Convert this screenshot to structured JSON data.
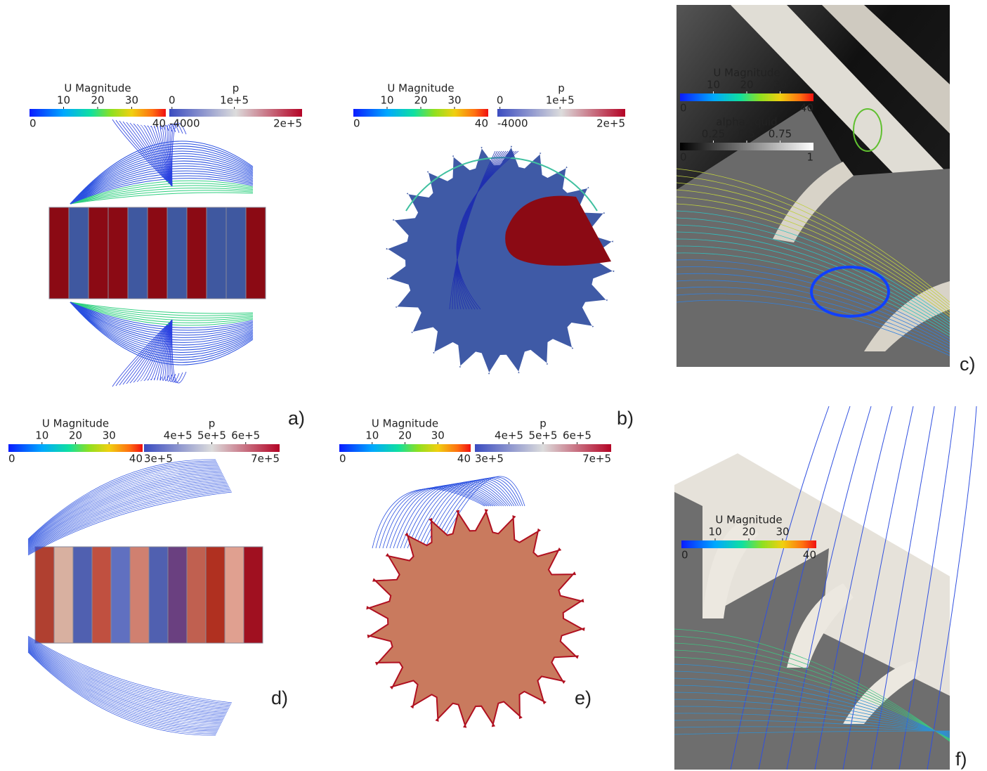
{
  "panels": [
    {
      "label": "a)",
      "colorbars": [
        {
          "title": "U Magnitude",
          "ticks": [
            "10",
            "20",
            "30"
          ],
          "min": "0",
          "max": "40"
        },
        {
          "title": "p",
          "ticks": [
            "0",
            "1e+5"
          ],
          "min": "-4000",
          "max": "2e+5"
        }
      ]
    },
    {
      "label": "b)",
      "colorbars": [
        {
          "title": "U Magnitude",
          "ticks": [
            "10",
            "20",
            "30"
          ],
          "min": "0",
          "max": "40"
        },
        {
          "title": "p",
          "ticks": [
            "0",
            "1e+5"
          ],
          "min": "-4000",
          "max": "2e+5"
        }
      ]
    },
    {
      "label": "c)",
      "colorbars": [
        {
          "title": "U Magnitude",
          "ticks": [
            "10",
            "20",
            "30"
          ],
          "min": "0",
          "max": "40"
        },
        {
          "title": "alpha.liquid",
          "ticks": [
            "0.25",
            "0.5",
            "0.75"
          ],
          "min": "0",
          "max": "1"
        }
      ]
    },
    {
      "label": "d)",
      "colorbars": [
        {
          "title": "U Magnitude",
          "ticks": [
            "10",
            "20",
            "30"
          ],
          "min": "0",
          "max": "40"
        },
        {
          "title": "p",
          "ticks": [
            "4e+5",
            "5e+5",
            "6e+5"
          ],
          "min": "3e+5",
          "max": "7e+5"
        }
      ]
    },
    {
      "label": "e)",
      "colorbars": [
        {
          "title": "U Magnitude",
          "ticks": [
            "10",
            "20",
            "30"
          ],
          "min": "0",
          "max": "40"
        },
        {
          "title": "p",
          "ticks": [
            "4e+5",
            "5e+5",
            "6e+5"
          ],
          "min": "3e+5",
          "max": "7e+5"
        }
      ]
    },
    {
      "label": "f)",
      "colorbars": [
        {
          "title": "U Magnitude",
          "ticks": [
            "10",
            "20",
            "30"
          ],
          "min": "0",
          "max": "40"
        }
      ]
    }
  ]
}
